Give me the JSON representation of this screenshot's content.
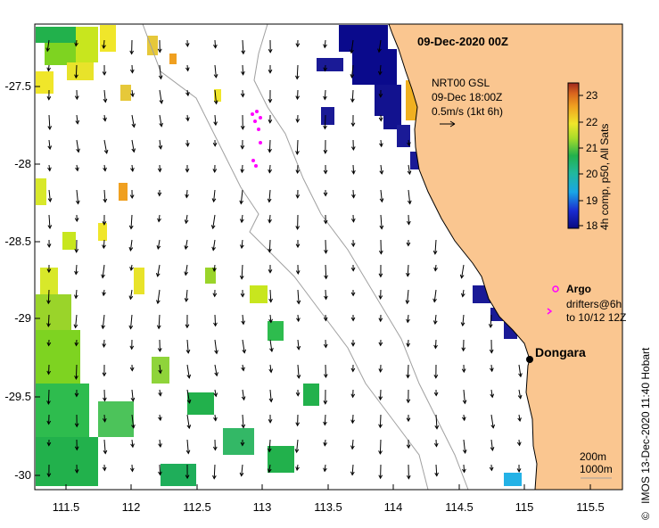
{
  "map": {
    "title": "09-Dec-2020 00Z",
    "latitude_labels": [
      "-27.5",
      "-28",
      "-28.5",
      "-29",
      "-29.5",
      "-30"
    ],
    "longitude_labels": [
      "111.5",
      "112",
      "112.5",
      "113",
      "113.5",
      "114",
      "114.5",
      "115",
      "115.5"
    ]
  },
  "legend": {
    "wind_lines": [
      "NRT00 GSL",
      "09-Dec 18:00Z",
      "0.5m/s (1kt 6h)"
    ],
    "colorbar_caption": "4h comp, p50, All Sats",
    "colorbar_ticks": [
      "23",
      "22",
      "21",
      "20",
      "19",
      "18"
    ],
    "argo_label": "Argo",
    "drifters_lines": [
      "drifters@6h",
      "to 10/12 12Z"
    ],
    "isobaths": [
      "200m",
      "1000m"
    ]
  },
  "places": {
    "dongara": "Dongara"
  },
  "credit": "IMOS 13-Dec-2020 11:40 Hobart",
  "copyright_symbol": "©",
  "colors": {
    "land": "#fac690",
    "coastline": "#000000",
    "isobath": "#a0a0a0",
    "argo": "#ff00ff"
  }
}
